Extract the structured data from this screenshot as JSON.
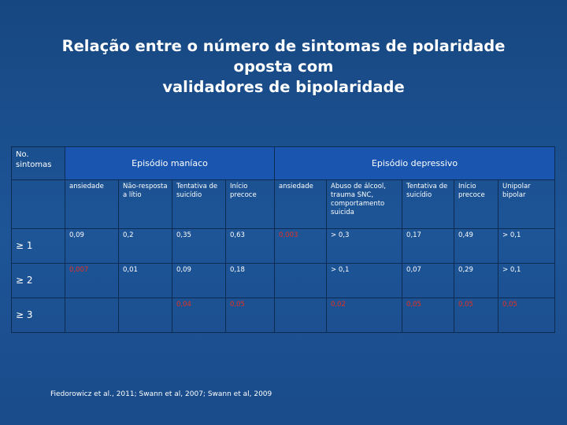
{
  "slide": {
    "title_line1": "Relação entre o número de sintomas de polaridade oposta com",
    "title_line2": "validadores de bipolaridade",
    "citation": "Fiedorowicz et al., 2011; Swann et al, 2007; Swann et al, 2009"
  },
  "table": {
    "corner": "No. sintomas",
    "group_maniac": "Episódio maníaco",
    "group_depressive": "Episódio depressivo",
    "columns": [
      "ansiedade",
      "Não-resposta a lítio",
      "Tentativa de suicídio",
      "Início precoce",
      "ansiedade",
      "Abuso de álcool, trauma SNC, comportamento suicida",
      "Tentativa de suicídio",
      "Início precoce",
      "Unipolar bipolar"
    ],
    "rows": [
      {
        "label": "≥ 1",
        "cells": [
          "0,09",
          "0,2",
          "0,35",
          "0,63",
          "0,003",
          "> 0,3",
          "0,17",
          "0,49",
          "> 0,1"
        ],
        "highlight": [
          false,
          false,
          false,
          false,
          true,
          false,
          false,
          false,
          false
        ]
      },
      {
        "label": "≥ 2",
        "cells": [
          "0,007",
          "0,01",
          "0,09",
          "0,18",
          "",
          "> 0,1",
          "0,07",
          "0,29",
          "> 0,1"
        ],
        "highlight": [
          true,
          false,
          false,
          false,
          false,
          false,
          false,
          false,
          false
        ]
      },
      {
        "label": "≥ 3",
        "cells": [
          "",
          "",
          "0,04",
          "0,05",
          "",
          "0,02",
          "0,05",
          "0,05",
          "0,05"
        ],
        "highlight": [
          false,
          false,
          true,
          true,
          false,
          true,
          true,
          true,
          true
        ]
      }
    ],
    "colors": {
      "significant": "#e8301f",
      "header_fill": "#1a56b0",
      "background": "#1b4f8f"
    }
  }
}
